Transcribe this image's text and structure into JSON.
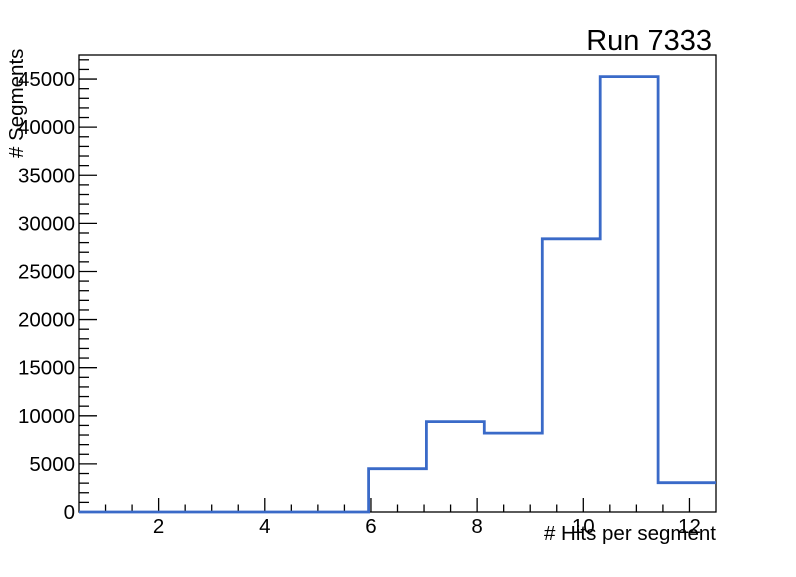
{
  "window": {
    "background_color": "#ffffff"
  },
  "chart_data": {
    "type": "histogram-step",
    "title": "Run 7333",
    "xlabel": "# Hits per segment",
    "ylabel": "# Segments",
    "xlim": [
      0.5,
      12.5
    ],
    "ylim": [
      0,
      47500
    ],
    "grid": false,
    "legend": false,
    "line_color": "#3a6ac8",
    "line_width": 2.8,
    "axis_color": "#000000",
    "text_color": "#000000",
    "bin_edges": [
      0.5,
      1.591,
      2.682,
      3.773,
      4.864,
      5.955,
      7.045,
      8.136,
      9.227,
      10.318,
      11.409,
      12.5
    ],
    "counts": [
      0,
      0,
      0,
      0,
      0,
      4500,
      9400,
      8200,
      28400,
      45250,
      3050
    ],
    "x_major_ticks": [
      2,
      4,
      6,
      8,
      10,
      12
    ],
    "x_major_tick_labels": [
      "2",
      "4",
      "6",
      "8",
      "10",
      "12"
    ],
    "x_minor_tick_step": 0.5,
    "y_major_ticks": [
      0,
      5000,
      10000,
      15000,
      20000,
      25000,
      30000,
      35000,
      40000,
      45000
    ],
    "y_major_tick_labels": [
      "0",
      "5000",
      "10000",
      "15000",
      "20000",
      "25000",
      "30000",
      "35000",
      "40000",
      "45000"
    ],
    "y_minor_tick_step": 1000
  }
}
